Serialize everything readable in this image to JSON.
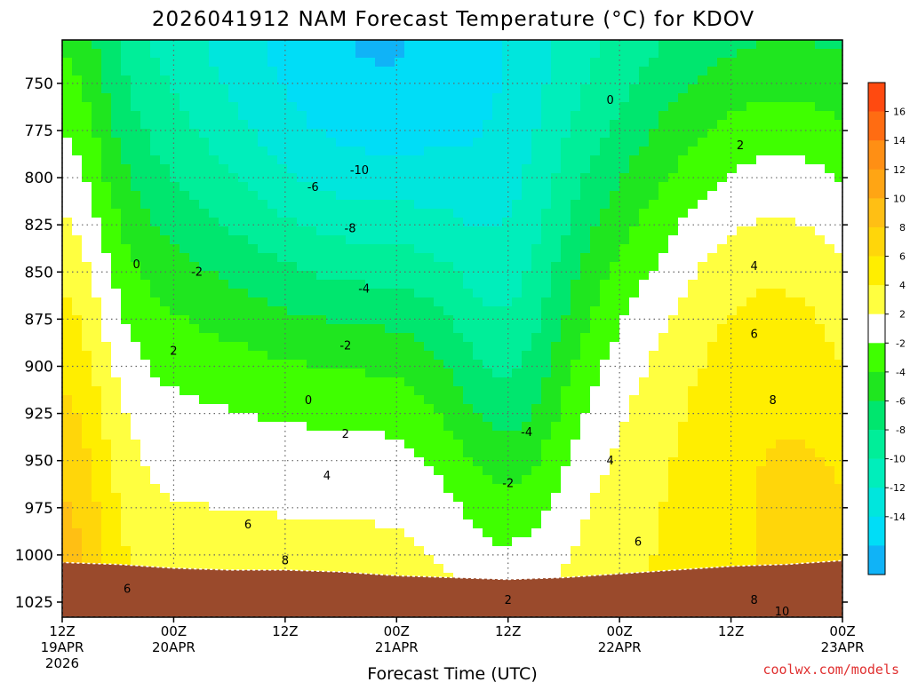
{
  "title": "2026041912 NAM Forecast Temperature (°C) for KDOV",
  "credit": "coolwx.com/models",
  "chart_data": {
    "type": "heatmap",
    "title": "2026041912 NAM Forecast Temperature (°C) for KDOV",
    "xlabel": "Forecast Time (UTC)",
    "ylabel": "",
    "x_ticks": [
      {
        "hour": 0,
        "line1": "12Z",
        "line2": "19APR",
        "line3": "2026"
      },
      {
        "hour": 12,
        "line1": "00Z",
        "line2": "20APR",
        "line3": ""
      },
      {
        "hour": 24,
        "line1": "12Z",
        "line2": "",
        "line3": ""
      },
      {
        "hour": 36,
        "line1": "00Z",
        "line2": "21APR",
        "line3": ""
      },
      {
        "hour": 48,
        "line1": "12Z",
        "line2": "",
        "line3": ""
      },
      {
        "hour": 60,
        "line1": "00Z",
        "line2": "22APR",
        "line3": ""
      },
      {
        "hour": 72,
        "line1": "12Z",
        "line2": "",
        "line3": ""
      },
      {
        "hour": 84,
        "line1": "00Z",
        "line2": "23APR",
        "line3": ""
      }
    ],
    "xlim_hours": [
      0,
      84
    ],
    "y_ticks": [
      750,
      775,
      800,
      825,
      850,
      875,
      900,
      925,
      950,
      975,
      1000,
      1025
    ],
    "ylim_hPa": [
      727,
      1033
    ],
    "grid": true,
    "contour_labels": [
      {
        "hour": 59,
        "p": 761,
        "text": "0"
      },
      {
        "hour": 73,
        "p": 785,
        "text": "2"
      },
      {
        "hour": 32,
        "p": 798,
        "text": "-10"
      },
      {
        "hour": 27,
        "p": 807,
        "text": "-6"
      },
      {
        "hour": 31,
        "p": 829,
        "text": "-8"
      },
      {
        "hour": 8,
        "p": 848,
        "text": "0"
      },
      {
        "hour": 14.5,
        "p": 852,
        "text": "-2"
      },
      {
        "hour": 32.5,
        "p": 861,
        "text": "-4"
      },
      {
        "hour": 74.5,
        "p": 849,
        "text": "4"
      },
      {
        "hour": 74.5,
        "p": 885,
        "text": "6"
      },
      {
        "hour": 30.5,
        "p": 891,
        "text": "-2"
      },
      {
        "hour": 12,
        "p": 894,
        "text": "2"
      },
      {
        "hour": 50,
        "p": 937,
        "text": "-4"
      },
      {
        "hour": 26.5,
        "p": 920,
        "text": "0"
      },
      {
        "hour": 30.5,
        "p": 938,
        "text": "2"
      },
      {
        "hour": 76.5,
        "p": 920,
        "text": "8"
      },
      {
        "hour": 59,
        "p": 952,
        "text": "4"
      },
      {
        "hour": 28.5,
        "p": 960,
        "text": "4"
      },
      {
        "hour": 48,
        "p": 964,
        "text": "-2"
      },
      {
        "hour": 20,
        "p": 986,
        "text": "6"
      },
      {
        "hour": 62,
        "p": 995,
        "text": "6"
      },
      {
        "hour": 24,
        "p": 1005,
        "text": "8"
      },
      {
        "hour": 7,
        "p": 1020,
        "text": "6"
      },
      {
        "hour": 48,
        "p": 1026,
        "text": "2"
      },
      {
        "hour": 74.5,
        "p": 1026,
        "text": "8"
      },
      {
        "hour": 77.5,
        "p": 1032,
        "text": "10"
      }
    ],
    "colorbar": {
      "labels": [
        "16",
        "14",
        "12",
        "10",
        "8",
        "6",
        "4",
        "2",
        "-2",
        "-4",
        "-6",
        "-8",
        "-10",
        "-12",
        "-14"
      ],
      "colors": [
        "#ff4a10",
        "#ff6c12",
        "#ff8f14",
        "#ffa514",
        "#ffbf14",
        "#ffd60a",
        "#ffee00",
        "#ffff40",
        "#ffffff",
        "#3fff00",
        "#1fe61f",
        "#00e66e",
        "#00ee99",
        "#00eebb",
        "#00e6dd",
        "#00ddf7",
        "#10b3f7"
      ]
    }
  }
}
